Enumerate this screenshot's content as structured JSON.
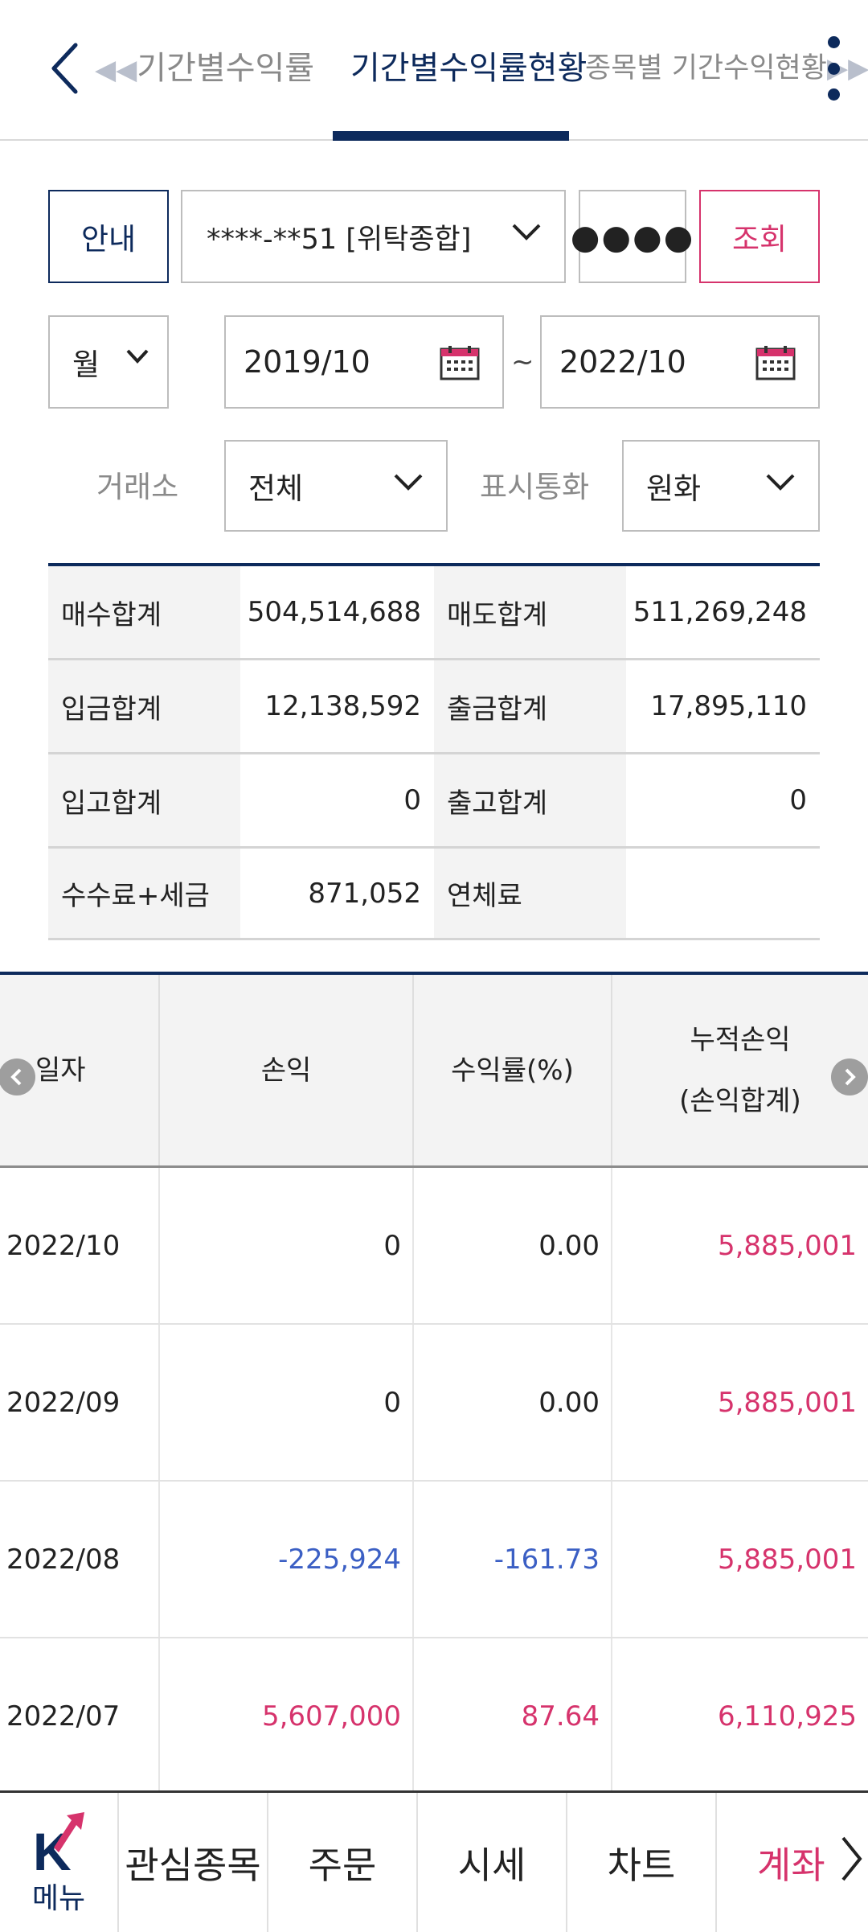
{
  "header": {
    "prev_tab": "기간별수익률",
    "active_tab": "기간별수익률현황",
    "next_tab": "종목별 기간수익현황"
  },
  "controls": {
    "guide_button": "안내",
    "account": "****-**51 [위탁종합]",
    "password_mask": "●●●●",
    "query_button": "조회",
    "period_unit": "월",
    "start_date": "2019/10",
    "tilde": "~",
    "end_date": "2022/10",
    "exchange_label": "거래소",
    "exchange_value": "전체",
    "currency_label": "표시통화",
    "currency_value": "원화"
  },
  "summary": {
    "rows": [
      {
        "label1": "매수합계",
        "value1": "504,514,688",
        "label2": "매도합계",
        "value2": "511,269,248"
      },
      {
        "label1": "입금합계",
        "value1": "12,138,592",
        "label2": "출금합계",
        "value2": "17,895,110"
      },
      {
        "label1": "입고합계",
        "value1": "0",
        "label2": "출고합계",
        "value2": "0"
      },
      {
        "label1": "수수료+세금",
        "value1": "871,052",
        "label2": "연체료",
        "value2": ""
      }
    ]
  },
  "table": {
    "headers": {
      "date": "일자",
      "pnl": "손익",
      "rate": "수익률(%)",
      "cum_line1": "누적손익",
      "cum_line2": "(손익합계)"
    },
    "rows": [
      {
        "date": "2022/10",
        "pnl": "0",
        "rate": "0.00",
        "cum": "5,885,001"
      },
      {
        "date": "2022/09",
        "pnl": "0",
        "rate": "0.00",
        "cum": "5,885,001"
      },
      {
        "date": "2022/08",
        "pnl": "-225,924",
        "rate": "-161.73",
        "cum": "5,885,001"
      },
      {
        "date": "2022/07",
        "pnl": "5,607,000",
        "rate": "87.64",
        "cum": "6,110,925"
      }
    ]
  },
  "bottom_nav": {
    "menu": "메뉴",
    "watchlist": "관심종목",
    "order": "주문",
    "quote": "시세",
    "chart": "차트",
    "account": "계좌"
  },
  "colors": {
    "navy": "#0d2a5c",
    "positive": "#d6336c",
    "negative": "#3b5fc4",
    "neutral": "#222222"
  }
}
